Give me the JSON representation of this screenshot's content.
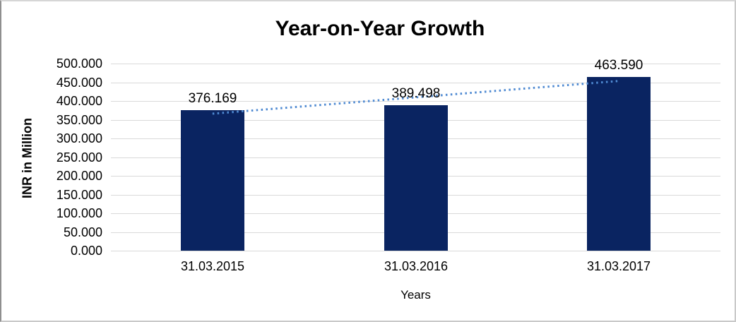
{
  "chart_data": {
    "type": "bar",
    "title": "Year-on-Year Growth",
    "categories": [
      "31.03.2015",
      "31.03.2016",
      "31.03.2017"
    ],
    "values": [
      376.169,
      389.498,
      463.59
    ],
    "value_labels": [
      "376.169",
      "389.498",
      "463.590"
    ],
    "xlabel": "Years",
    "ylabel": "INR in Million",
    "ylim": [
      0,
      500
    ],
    "y_ticks": [
      0,
      50,
      100,
      150,
      200,
      250,
      300,
      350,
      400,
      450,
      500
    ],
    "y_tick_labels": [
      "0.000",
      "50.000",
      "100.000",
      "150.000",
      "200.000",
      "250.000",
      "300.000",
      "350.000",
      "400.000",
      "450.000",
      "500.000"
    ],
    "grid": true,
    "legend": "none",
    "trendline": {
      "type": "linear",
      "style": "dotted"
    },
    "colors": {
      "bar": "#0a2461",
      "trendline": "#4f8ad2",
      "gridline": "#d9d9d9",
      "text": "#000000"
    }
  }
}
